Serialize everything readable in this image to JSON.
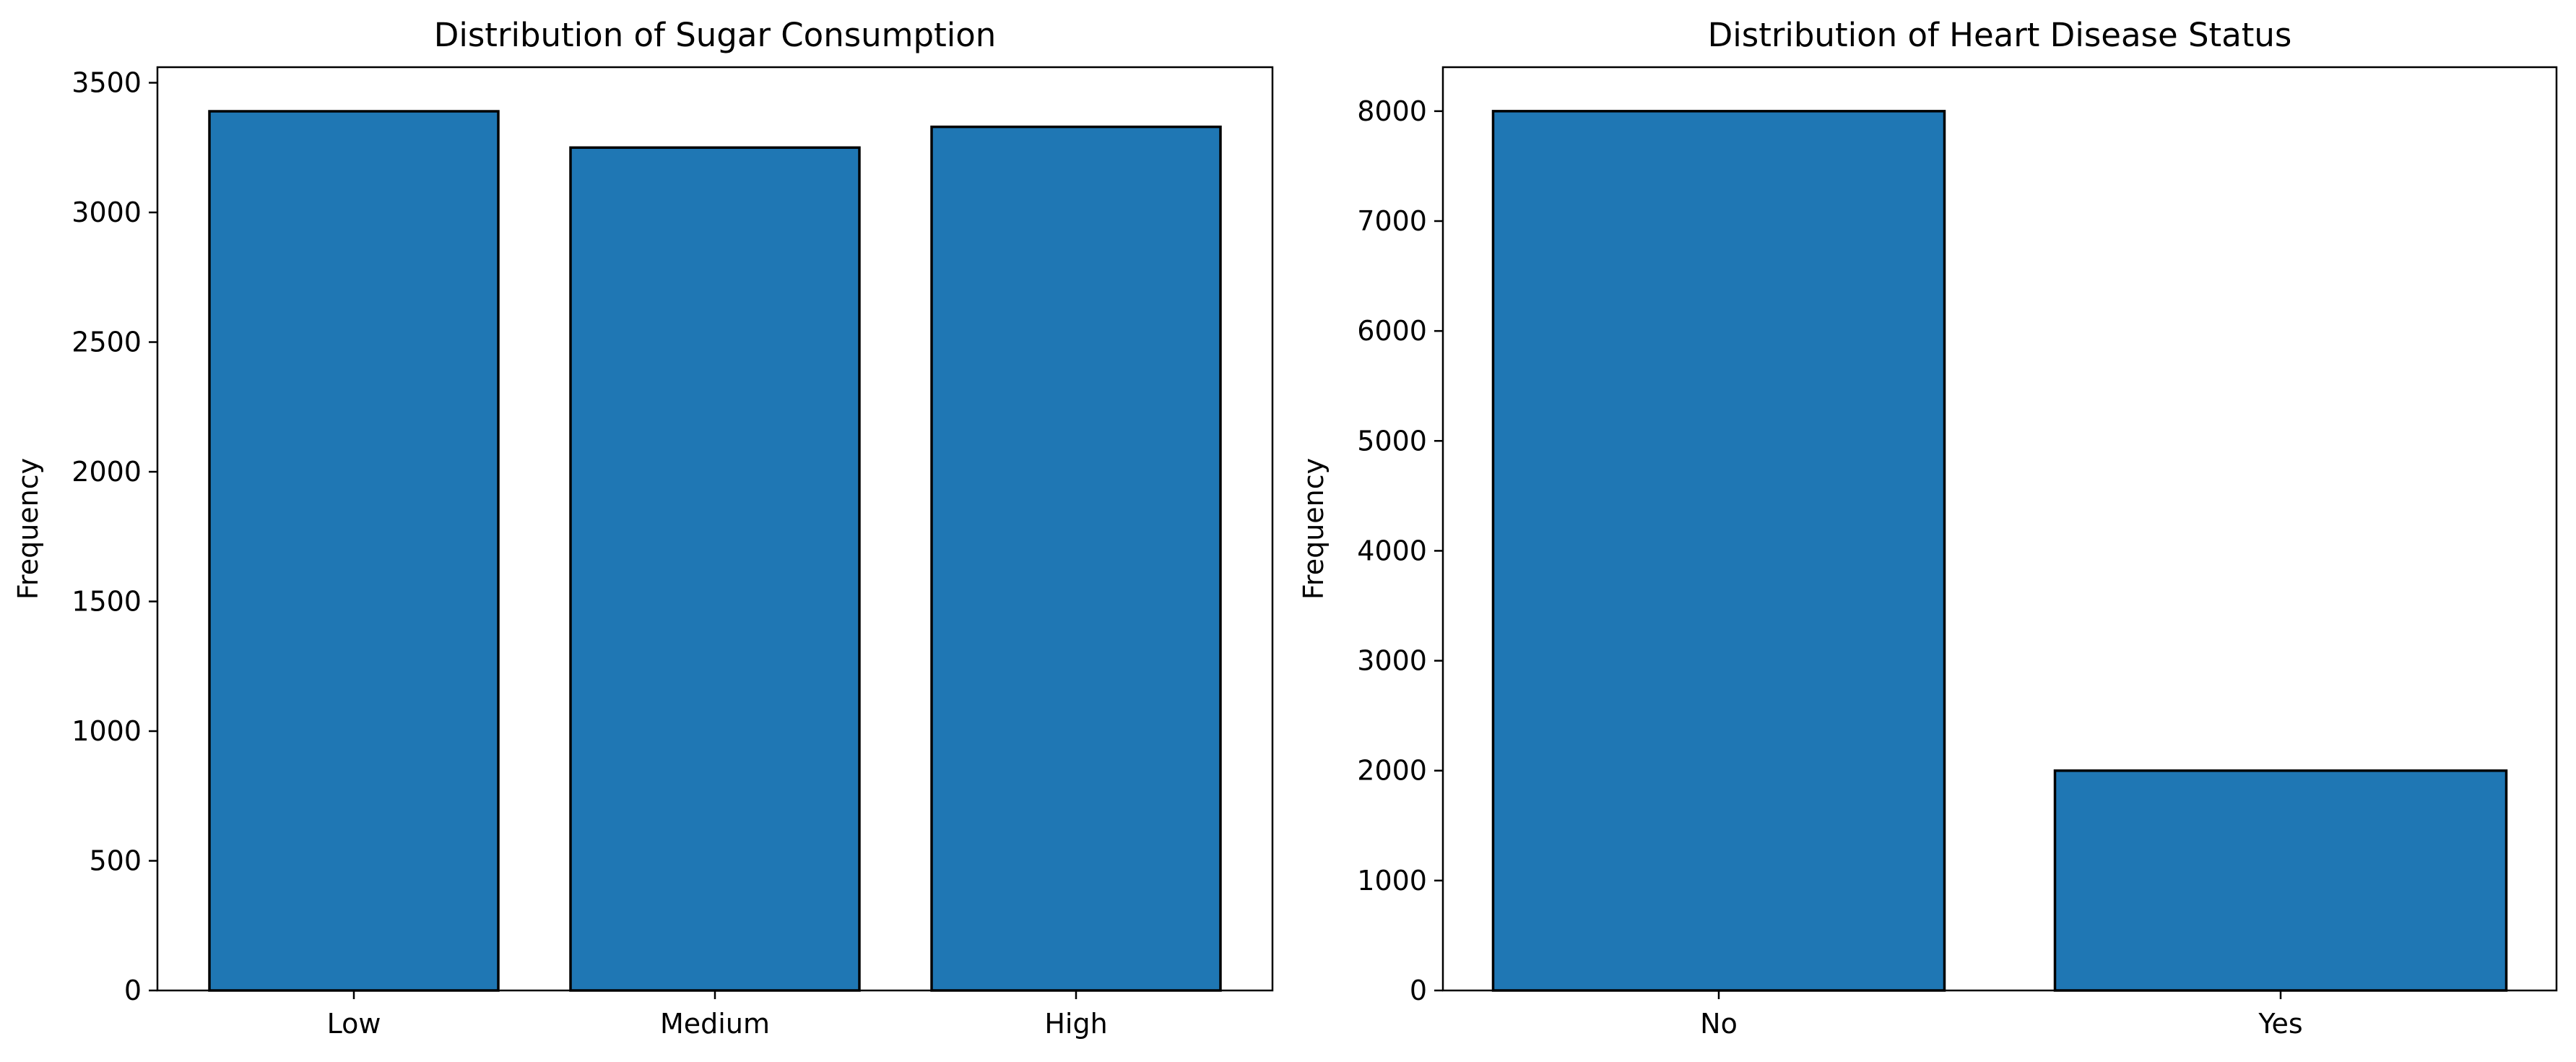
{
  "chart_data": [
    {
      "type": "bar",
      "title": "Distribution of Sugar Consumption",
      "xlabel": "",
      "ylabel": "Frequency",
      "categories": [
        "Low",
        "Medium",
        "High"
      ],
      "values": [
        3390,
        3250,
        3330
      ],
      "ylim": [
        0,
        3560
      ],
      "yticks": [
        0,
        500,
        1000,
        1500,
        2000,
        2500,
        3000,
        3500
      ],
      "grid": false,
      "bar_color": "#1f77b4"
    },
    {
      "type": "bar",
      "title": "Distribution of Heart Disease Status",
      "xlabel": "",
      "ylabel": "Frequency",
      "categories": [
        "No",
        "Yes"
      ],
      "values": [
        8000,
        2000
      ],
      "ylim": [
        0,
        8400
      ],
      "yticks": [
        0,
        1000,
        2000,
        3000,
        4000,
        5000,
        6000,
        7000,
        8000
      ],
      "grid": false,
      "bar_color": "#1f77b4"
    }
  ]
}
